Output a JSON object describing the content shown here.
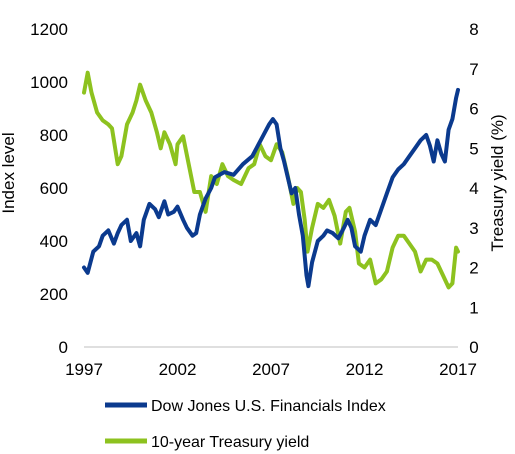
{
  "chart_data": {
    "type": "line",
    "x_axis": {
      "range": [
        1997,
        2017
      ],
      "ticks": [
        "1997",
        "2002",
        "2007",
        "2012",
        "2017"
      ]
    },
    "y_left": {
      "label": "Index level",
      "range": [
        0,
        1200
      ],
      "ticks": [
        "0",
        "200",
        "400",
        "600",
        "800",
        "1000",
        "1200"
      ]
    },
    "y_right": {
      "label": "Treasury yield (%)",
      "range": [
        0,
        8
      ],
      "ticks": [
        "0",
        "1",
        "2",
        "3",
        "4",
        "5",
        "6",
        "7",
        "8"
      ]
    },
    "grid": false,
    "legend_placement": "bottom",
    "series": [
      {
        "name": "Dow Jones U.S. Financials Index",
        "axis": "left",
        "color": "#0b3a8e",
        "x": [
          1997.0,
          1997.2,
          1997.5,
          1997.8,
          1998.0,
          1998.3,
          1998.6,
          1998.8,
          1999.0,
          1999.3,
          1999.5,
          1999.8,
          2000.0,
          2000.2,
          2000.5,
          2000.8,
          2001.0,
          2001.3,
          2001.5,
          2001.8,
          2002.0,
          2002.3,
          2002.5,
          2002.8,
          2003.0,
          2003.2,
          2003.5,
          2003.8,
          2004.0,
          2004.5,
          2005.0,
          2005.5,
          2006.0,
          2006.3,
          2006.6,
          2006.9,
          2007.1,
          2007.3,
          2007.5,
          2007.7,
          2007.9,
          2008.1,
          2008.3,
          2008.5,
          2008.7,
          2008.9,
          2009.0,
          2009.2,
          2009.5,
          2009.8,
          2010.0,
          2010.3,
          2010.6,
          2010.9,
          2011.1,
          2011.3,
          2011.5,
          2011.8,
          2012.0,
          2012.3,
          2012.6,
          2012.9,
          2013.2,
          2013.5,
          2013.8,
          2014.1,
          2014.4,
          2014.7,
          2015.0,
          2015.3,
          2015.5,
          2015.7,
          2015.9,
          2016.1,
          2016.3,
          2016.5,
          2016.7,
          2016.9,
          2017.0
        ],
        "values": [
          300,
          280,
          360,
          380,
          420,
          440,
          390,
          430,
          460,
          480,
          400,
          430,
          380,
          480,
          540,
          520,
          490,
          550,
          500,
          510,
          530,
          480,
          450,
          420,
          430,
          500,
          560,
          600,
          640,
          660,
          650,
          690,
          720,
          760,
          800,
          840,
          860,
          840,
          750,
          700,
          640,
          580,
          600,
          500,
          420,
          270,
          230,
          320,
          400,
          420,
          440,
          430,
          410,
          450,
          480,
          450,
          380,
          360,
          420,
          480,
          460,
          520,
          580,
          640,
          670,
          690,
          720,
          750,
          780,
          800,
          760,
          700,
          780,
          730,
          700,
          820,
          860,
          940,
          970
        ]
      },
      {
        "name": "10-year Treasury yield",
        "axis": "right",
        "color": "#8dc21f",
        "x": [
          1997.0,
          1997.2,
          1997.4,
          1997.7,
          1998.0,
          1998.3,
          1998.5,
          1998.8,
          1999.0,
          1999.3,
          1999.6,
          1999.8,
          2000.0,
          2000.3,
          2000.6,
          2000.9,
          2001.1,
          2001.3,
          2001.6,
          2001.9,
          2002.0,
          2002.3,
          2002.6,
          2002.9,
          2003.2,
          2003.5,
          2003.8,
          2004.1,
          2004.4,
          2004.7,
          2005.0,
          2005.4,
          2005.8,
          2006.1,
          2006.4,
          2006.7,
          2007.0,
          2007.3,
          2007.6,
          2007.9,
          2008.2,
          2008.4,
          2008.6,
          2008.8,
          2008.95,
          2009.2,
          2009.5,
          2009.8,
          2010.1,
          2010.4,
          2010.7,
          2011.0,
          2011.2,
          2011.5,
          2011.7,
          2012.0,
          2012.3,
          2012.6,
          2012.9,
          2013.2,
          2013.5,
          2013.8,
          2014.1,
          2014.4,
          2014.7,
          2015.0,
          2015.3,
          2015.6,
          2015.9,
          2016.2,
          2016.5,
          2016.7,
          2016.9,
          2017.0
        ],
        "values": [
          6.4,
          6.9,
          6.4,
          5.9,
          5.7,
          5.6,
          5.5,
          4.6,
          4.8,
          5.6,
          5.9,
          6.2,
          6.6,
          6.2,
          5.9,
          5.4,
          5.0,
          5.4,
          5.1,
          4.6,
          5.1,
          5.3,
          4.6,
          3.9,
          3.9,
          3.4,
          4.3,
          4.1,
          4.6,
          4.3,
          4.2,
          4.1,
          4.5,
          4.6,
          5.1,
          4.8,
          4.7,
          5.1,
          4.9,
          4.3,
          3.6,
          4.0,
          3.9,
          3.2,
          2.4,
          3.0,
          3.6,
          3.5,
          3.7,
          3.3,
          2.6,
          3.4,
          3.5,
          2.9,
          2.1,
          2.0,
          2.2,
          1.6,
          1.7,
          1.9,
          2.5,
          2.8,
          2.8,
          2.6,
          2.4,
          1.9,
          2.2,
          2.2,
          2.1,
          1.8,
          1.5,
          1.6,
          2.5,
          2.4
        ]
      }
    ]
  }
}
